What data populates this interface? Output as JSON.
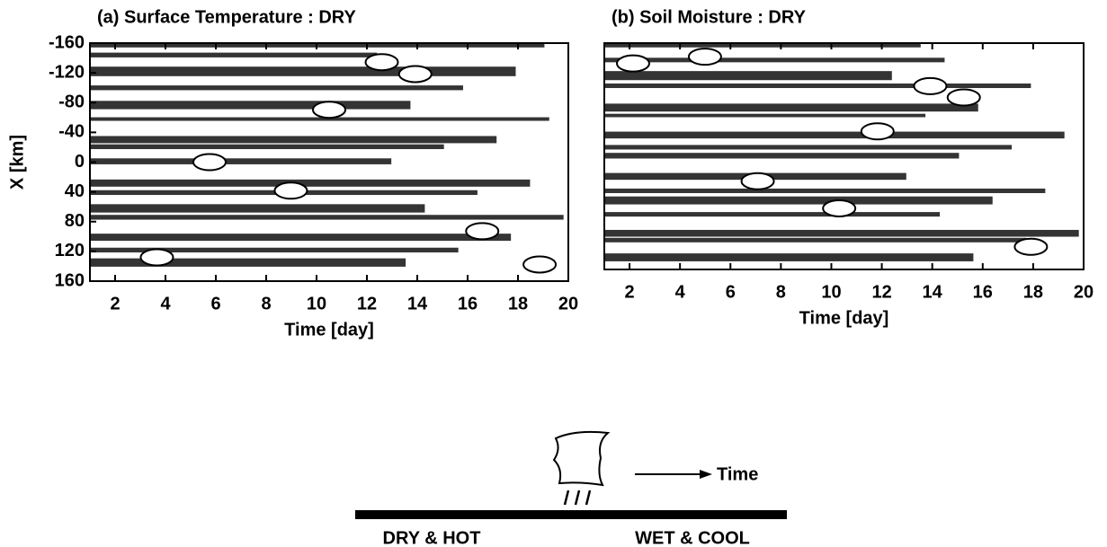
{
  "chart_data": [
    {
      "type": "contour",
      "title": "(a) Surface Temperature : DRY",
      "x_label": "Time [day]",
      "y_label": "X [km]",
      "xlim": [
        1,
        20
      ],
      "xticks": [
        2,
        4,
        6,
        8,
        10,
        12,
        14,
        16,
        18,
        20
      ],
      "ylim": [
        -160,
        160
      ],
      "yticks": [
        -160,
        -120,
        -80,
        -40,
        0,
        40,
        80,
        120,
        160
      ],
      "y_inverted": true
    },
    {
      "type": "contour",
      "title": "(b) Soil Moisture : DRY",
      "x_label": "Time [day]",
      "xlim": [
        1,
        20
      ],
      "xticks": [
        2,
        4,
        6,
        8,
        10,
        12,
        14,
        16,
        18,
        20
      ],
      "ylim": [
        -160,
        160
      ],
      "y_inverted": true
    }
  ],
  "diagram": {
    "arrow_label": "Time",
    "left_label": "DRY & HOT",
    "right_label": "WET & COOL"
  }
}
